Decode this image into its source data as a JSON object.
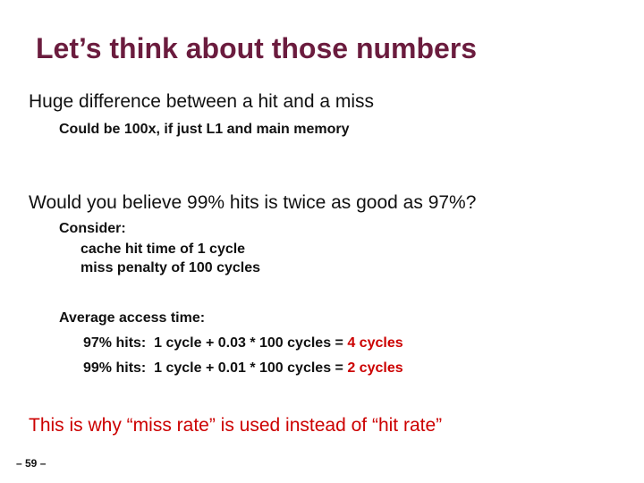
{
  "title": "Let’s think about those numbers",
  "point1": {
    "text": "Huge difference between a hit and a miss",
    "sub": "Could be 100x, if just L1 and main memory"
  },
  "point2": {
    "text": "Would you believe 99% hits is twice as good as 97%?",
    "consider": {
      "label": "Consider:",
      "lines": [
        "cache hit time of 1 cycle",
        "miss penalty of 100 cycles"
      ]
    },
    "average": {
      "label": "Average access time:",
      "rows": [
        {
          "formula": "97% hits:  1 cycle + 0.03 * 100 cycles =",
          "result": "4 cycles"
        },
        {
          "formula": "99% hits:  1 cycle + 0.01 * 100 cycles =",
          "result": "2 cycles"
        }
      ]
    }
  },
  "conclusion": "This is why “miss rate” is used instead of “hit rate”",
  "page_number": "– 59 –"
}
